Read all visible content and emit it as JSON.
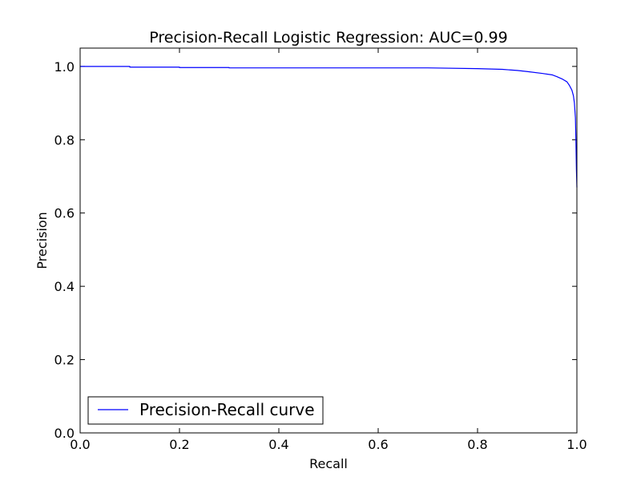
{
  "chart_data": {
    "type": "line",
    "title": "Precision-Recall Logistic Regression: AUC=0.99",
    "xlabel": "Recall",
    "ylabel": "Precision",
    "xlim": [
      0.0,
      1.0
    ],
    "ylim": [
      0.0,
      1.05
    ],
    "xticks": [
      "0.0",
      "0.2",
      "0.4",
      "0.6",
      "0.8",
      "1.0"
    ],
    "yticks": [
      "0.0",
      "0.2",
      "0.4",
      "0.6",
      "0.8",
      "1.0"
    ],
    "grid": false,
    "legend": {
      "position": "lower-left",
      "entries": [
        "Precision-Recall curve"
      ]
    },
    "series": [
      {
        "name": "Precision-Recall curve",
        "color": "#0000ff",
        "points": [
          [
            0.0,
            1.0
          ],
          [
            0.1,
            1.0
          ],
          [
            0.1,
            0.998
          ],
          [
            0.2,
            0.998
          ],
          [
            0.2,
            0.997
          ],
          [
            0.3,
            0.997
          ],
          [
            0.3,
            0.996
          ],
          [
            0.5,
            0.996
          ],
          [
            0.7,
            0.996
          ],
          [
            0.8,
            0.994
          ],
          [
            0.85,
            0.992
          ],
          [
            0.88,
            0.989
          ],
          [
            0.9,
            0.986
          ],
          [
            0.93,
            0.981
          ],
          [
            0.95,
            0.977
          ],
          [
            0.96,
            0.972
          ],
          [
            0.97,
            0.966
          ],
          [
            0.98,
            0.958
          ],
          [
            0.985,
            0.948
          ],
          [
            0.99,
            0.935
          ],
          [
            0.993,
            0.92
          ],
          [
            0.995,
            0.9
          ],
          [
            0.997,
            0.86
          ],
          [
            0.998,
            0.8
          ],
          [
            0.999,
            0.72
          ],
          [
            1.0,
            0.67
          ]
        ]
      }
    ]
  }
}
